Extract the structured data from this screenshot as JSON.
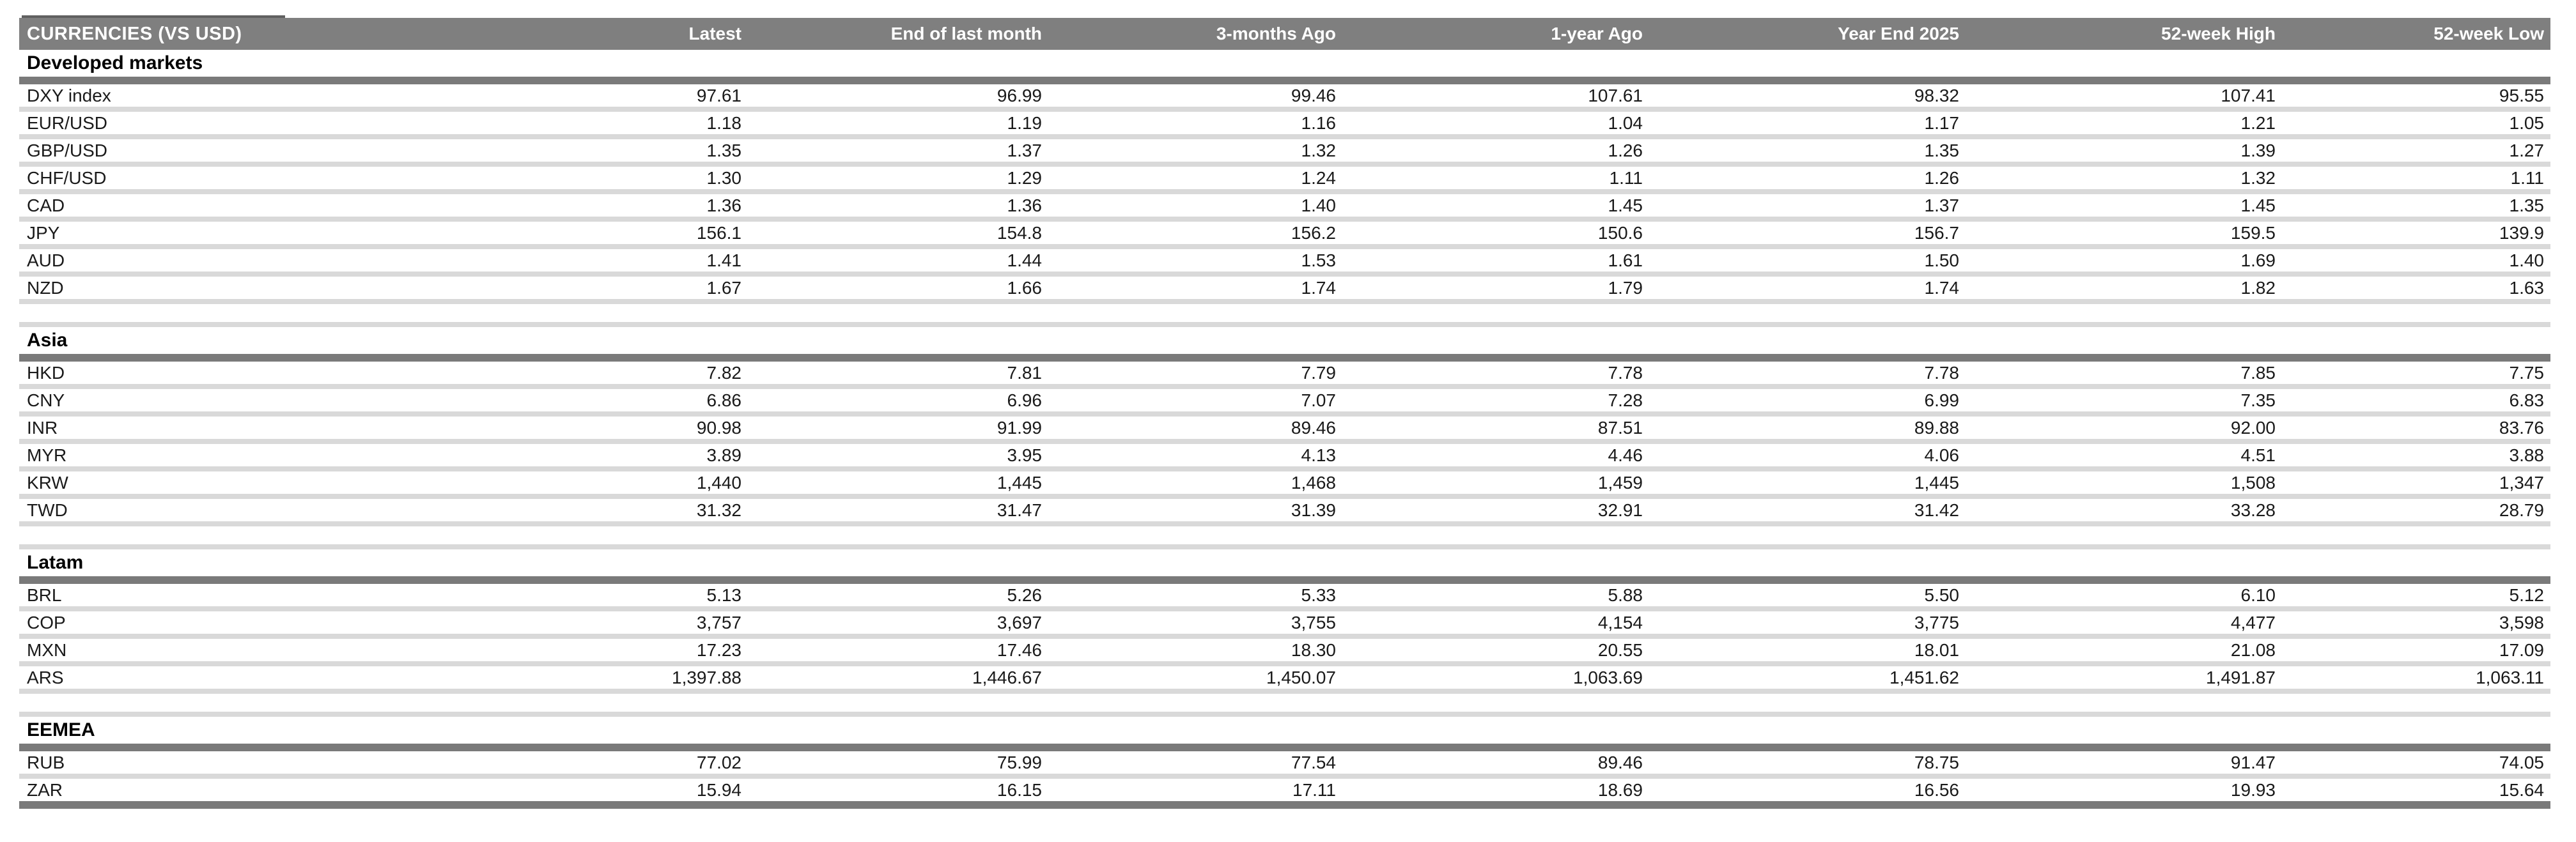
{
  "table": {
    "title": "CURRENCIES (VS USD)",
    "columns": [
      "Latest",
      "End of last month",
      "3-months Ago",
      "1-year Ago",
      "Year End 2025",
      "52-week High",
      "52-week Low"
    ],
    "sections": [
      {
        "title": "Developed markets",
        "rows": [
          {
            "label": "DXY index",
            "values": [
              "97.61",
              "96.99",
              "99.46",
              "107.61",
              "98.32",
              "107.41",
              "95.55"
            ]
          },
          {
            "label": "EUR/USD",
            "values": [
              "1.18",
              "1.19",
              "1.16",
              "1.04",
              "1.17",
              "1.21",
              "1.05"
            ]
          },
          {
            "label": "GBP/USD",
            "values": [
              "1.35",
              "1.37",
              "1.32",
              "1.26",
              "1.35",
              "1.39",
              "1.27"
            ]
          },
          {
            "label": "CHF/USD",
            "values": [
              "1.30",
              "1.29",
              "1.24",
              "1.11",
              "1.26",
              "1.32",
              "1.11"
            ]
          },
          {
            "label": "CAD",
            "values": [
              "1.36",
              "1.36",
              "1.40",
              "1.45",
              "1.37",
              "1.45",
              "1.35"
            ]
          },
          {
            "label": "JPY",
            "values": [
              "156.1",
              "154.8",
              "156.2",
              "150.6",
              "156.7",
              "159.5",
              "139.9"
            ]
          },
          {
            "label": "AUD",
            "values": [
              "1.41",
              "1.44",
              "1.53",
              "1.61",
              "1.50",
              "1.69",
              "1.40"
            ]
          },
          {
            "label": "NZD",
            "values": [
              "1.67",
              "1.66",
              "1.74",
              "1.79",
              "1.74",
              "1.82",
              "1.63"
            ]
          }
        ]
      },
      {
        "title": "Asia",
        "rows": [
          {
            "label": "HKD",
            "values": [
              "7.82",
              "7.81",
              "7.79",
              "7.78",
              "7.78",
              "7.85",
              "7.75"
            ]
          },
          {
            "label": "CNY",
            "values": [
              "6.86",
              "6.96",
              "7.07",
              "7.28",
              "6.99",
              "7.35",
              "6.83"
            ]
          },
          {
            "label": "INR",
            "values": [
              "90.98",
              "91.99",
              "89.46",
              "87.51",
              "89.88",
              "92.00",
              "83.76"
            ]
          },
          {
            "label": "MYR",
            "values": [
              "3.89",
              "3.95",
              "4.13",
              "4.46",
              "4.06",
              "4.51",
              "3.88"
            ]
          },
          {
            "label": "KRW",
            "values": [
              "1,440",
              "1,445",
              "1,468",
              "1,459",
              "1,445",
              "1,508",
              "1,347"
            ]
          },
          {
            "label": "TWD",
            "values": [
              "31.32",
              "31.47",
              "31.39",
              "32.91",
              "31.42",
              "33.28",
              "28.79"
            ]
          }
        ]
      },
      {
        "title": "Latam",
        "rows": [
          {
            "label": "BRL",
            "values": [
              "5.13",
              "5.26",
              "5.33",
              "5.88",
              "5.50",
              "6.10",
              "5.12"
            ]
          },
          {
            "label": "COP",
            "values": [
              "3,757",
              "3,697",
              "3,755",
              "4,154",
              "3,775",
              "4,477",
              "3,598"
            ]
          },
          {
            "label": "MXN",
            "values": [
              "17.23",
              "17.46",
              "18.30",
              "20.55",
              "18.01",
              "21.08",
              "17.09"
            ]
          },
          {
            "label": "ARS",
            "values": [
              "1,397.88",
              "1,446.67",
              "1,450.07",
              "1,063.69",
              "1,451.62",
              "1,491.87",
              "1,063.11"
            ]
          }
        ]
      },
      {
        "title": "EEMEA",
        "rows": [
          {
            "label": "RUB",
            "values": [
              "77.02",
              "75.99",
              "77.54",
              "89.46",
              "78.75",
              "91.47",
              "74.05"
            ]
          },
          {
            "label": "ZAR",
            "values": [
              "15.94",
              "16.15",
              "17.11",
              "18.69",
              "16.56",
              "19.93",
              "15.64"
            ]
          }
        ]
      }
    ]
  },
  "colors": {
    "header_bg": "#7f7f7f",
    "section_band": "#7a7a7a",
    "row_rule": "#d9d9d9",
    "header_text": "#ffffff",
    "body_text": "#1a1a1a"
  }
}
